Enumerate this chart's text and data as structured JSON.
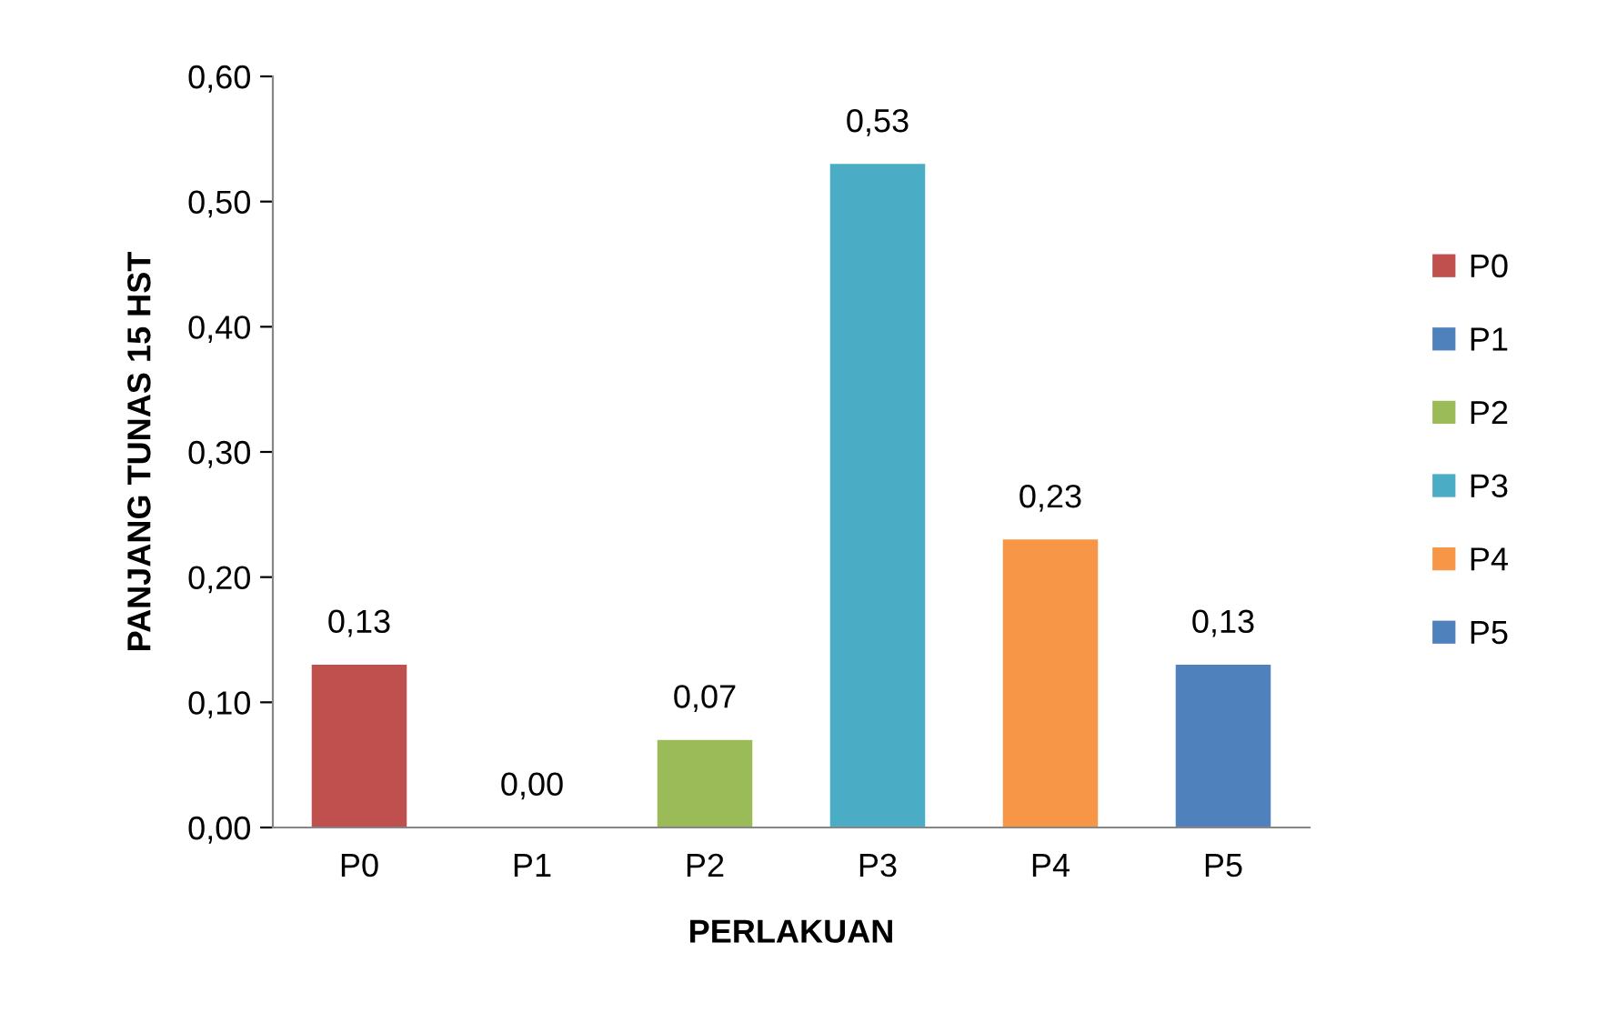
{
  "chart_data": {
    "type": "bar",
    "xlabel": "PERLAKUAN",
    "ylabel": "PANJANG TUNAS 15 HST",
    "categories": [
      "P0",
      "P1",
      "P2",
      "P3",
      "P4",
      "P5"
    ],
    "series": [
      {
        "name": "P0",
        "color": "#c0504d",
        "values": [
          0.13,
          null,
          null,
          null,
          null,
          null
        ],
        "value_labels": [
          "0,13",
          null,
          null,
          null,
          null,
          null
        ]
      },
      {
        "name": "P1",
        "color": "#4f81bd",
        "values": [
          null,
          0,
          null,
          null,
          null,
          null
        ],
        "value_labels": [
          null,
          "0,00",
          null,
          null,
          null,
          null
        ]
      },
      {
        "name": "P2",
        "color": "#9bbb59",
        "values": [
          null,
          null,
          0.07,
          null,
          null,
          null
        ],
        "value_labels": [
          null,
          null,
          "0,07",
          null,
          null,
          null
        ]
      },
      {
        "name": "P3",
        "color": "#4bacc6",
        "values": [
          null,
          null,
          null,
          0.53,
          null,
          null
        ],
        "value_labels": [
          null,
          null,
          null,
          "0,53",
          null,
          null
        ]
      },
      {
        "name": "P4",
        "color": "#f79646",
        "values": [
          null,
          null,
          null,
          null,
          0.23,
          null
        ],
        "value_labels": [
          null,
          null,
          null,
          null,
          "0,23",
          null
        ]
      },
      {
        "name": "P5",
        "color": "#4f81bd",
        "values": [
          null,
          null,
          null,
          null,
          null,
          0.13
        ],
        "value_labels": [
          null,
          null,
          null,
          null,
          null,
          "0,13"
        ]
      }
    ],
    "ylim": [
      0,
      0.6
    ],
    "yticks": [
      {
        "value": 0,
        "label": "0,00"
      },
      {
        "value": 0.1,
        "label": "0,10"
      },
      {
        "value": 0.2,
        "label": "0,20"
      },
      {
        "value": 0.3,
        "label": "0,30"
      },
      {
        "value": 0.4,
        "label": "0,40"
      },
      {
        "value": 0.5,
        "label": "0,50"
      },
      {
        "value": 0.6,
        "label": "0,60"
      }
    ],
    "grid": false,
    "legend": "right"
  }
}
